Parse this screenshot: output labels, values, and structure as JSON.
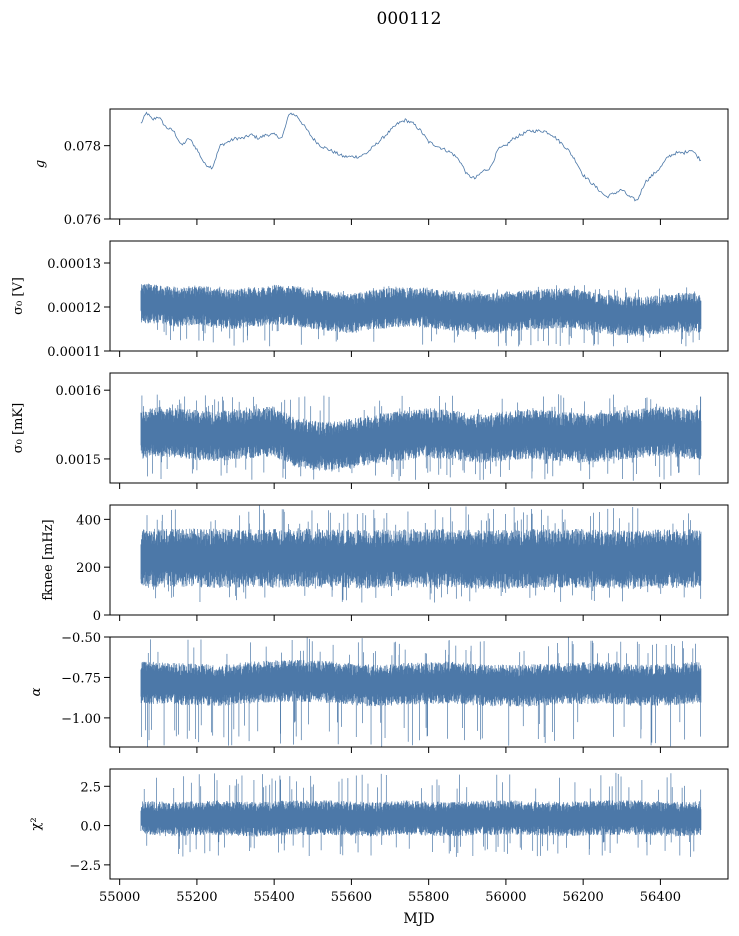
{
  "figure": {
    "title": "000112",
    "xlabel": "MJD"
  },
  "colors": {
    "series": "#4c78a8",
    "axes": "#000000",
    "background": "#ffffff"
  },
  "chart_data": [
    {
      "type": "line",
      "ylabel": "g",
      "xlim": [
        54975,
        56575
      ],
      "ylim": [
        0.076,
        0.079
      ],
      "yticks": [
        0.076,
        0.078
      ],
      "ytick_labels": [
        "0.076",
        "0.078"
      ],
      "show_xticklabels": false,
      "grid": false,
      "x": [
        55055,
        55070,
        55085,
        55100,
        55120,
        55140,
        55160,
        55180,
        55200,
        55220,
        55240,
        55260,
        55280,
        55300,
        55320,
        55340,
        55360,
        55380,
        55400,
        55420,
        55440,
        55460,
        55480,
        55500,
        55520,
        55540,
        55560,
        55580,
        55600,
        55620,
        55640,
        55660,
        55680,
        55700,
        55720,
        55740,
        55760,
        55780,
        55800,
        55820,
        55840,
        55860,
        55880,
        55900,
        55920,
        55940,
        55960,
        55980,
        56000,
        56020,
        56040,
        56060,
        56080,
        56100,
        56120,
        56140,
        56160,
        56180,
        56200,
        56220,
        56240,
        56260,
        56280,
        56300,
        56320,
        56340,
        56360,
        56380,
        56400,
        56420,
        56440,
        56460,
        56480,
        56505
      ],
      "y": [
        0.0786,
        0.0789,
        0.0787,
        0.0788,
        0.0785,
        0.0784,
        0.078,
        0.0782,
        0.0779,
        0.0775,
        0.0774,
        0.078,
        0.0781,
        0.0782,
        0.0782,
        0.0783,
        0.0782,
        0.0783,
        0.0783,
        0.0782,
        0.0789,
        0.0788,
        0.0785,
        0.0782,
        0.078,
        0.0779,
        0.0778,
        0.0777,
        0.0777,
        0.0777,
        0.0778,
        0.078,
        0.0782,
        0.0784,
        0.0786,
        0.0787,
        0.0786,
        0.0784,
        0.0781,
        0.078,
        0.0779,
        0.0778,
        0.0776,
        0.0772,
        0.0771,
        0.0773,
        0.0774,
        0.0779,
        0.078,
        0.0782,
        0.0783,
        0.0784,
        0.0784,
        0.0784,
        0.0783,
        0.0781,
        0.0779,
        0.0776,
        0.0772,
        0.077,
        0.0768,
        0.0766,
        0.0767,
        0.0768,
        0.0766,
        0.0765,
        0.077,
        0.0772,
        0.0774,
        0.0777,
        0.0778,
        0.0778,
        0.0779,
        0.0776
      ]
    },
    {
      "type": "line",
      "ylabel": "σ₀ [V]",
      "xlim": [
        54975,
        56575
      ],
      "ylim": [
        0.00011,
        0.000135
      ],
      "yticks": [
        0.00011,
        0.00012,
        0.00013
      ],
      "ytick_labels": [
        "0.00011",
        "0.00012",
        "0.00013"
      ],
      "show_xticklabels": false,
      "grid": false,
      "x": [
        55055,
        55100,
        55150,
        55200,
        55250,
        55300,
        55350,
        55400,
        55450,
        55500,
        55550,
        55600,
        55650,
        55700,
        55750,
        55800,
        55850,
        55900,
        55950,
        56000,
        56050,
        56100,
        56150,
        56200,
        56250,
        56300,
        56350,
        56400,
        56450,
        56505
      ],
      "y": [
        0.000121,
        0.0001205,
        0.00012,
        0.0001205,
        0.0001198,
        0.0001195,
        0.00012,
        0.0001205,
        0.0001203,
        0.0001195,
        0.000119,
        0.0001185,
        0.0001193,
        0.0001198,
        0.00012,
        0.0001198,
        0.0001192,
        0.0001188,
        0.0001185,
        0.000119,
        0.0001193,
        0.0001195,
        0.0001198,
        0.0001193,
        0.0001185,
        0.000118,
        0.0001178,
        0.0001183,
        0.0001188,
        0.0001185
      ],
      "spread": 3.5e-06,
      "extremes": [
        0.000111,
        0.000125
      ]
    },
    {
      "type": "line",
      "ylabel": "σ₀ [mK]",
      "xlim": [
        54975,
        56575
      ],
      "ylim": [
        0.001465,
        0.001625
      ],
      "yticks": [
        0.0015,
        0.0016
      ],
      "ytick_labels": [
        "0.0015",
        "0.0016"
      ],
      "show_xticklabels": false,
      "grid": false,
      "x": [
        55055,
        55100,
        55150,
        55200,
        55250,
        55300,
        55350,
        55400,
        55450,
        55500,
        55550,
        55600,
        55650,
        55700,
        55750,
        55800,
        55850,
        55900,
        55950,
        56000,
        56050,
        56100,
        56150,
        56200,
        56250,
        56300,
        56350,
        56400,
        56450,
        56505
      ],
      "y": [
        0.001535,
        0.00154,
        0.001538,
        0.001535,
        0.001533,
        0.001535,
        0.001538,
        0.00154,
        0.001525,
        0.00152,
        0.001518,
        0.001522,
        0.001528,
        0.001532,
        0.001535,
        0.001538,
        0.001535,
        0.001532,
        0.00153,
        0.001533,
        0.001536,
        0.001535,
        0.001532,
        0.00153,
        0.001532,
        0.001535,
        0.001538,
        0.00154,
        0.001538,
        0.001535
      ],
      "spread": 2.8e-05,
      "extremes": [
        0.001468,
        0.001595
      ]
    },
    {
      "type": "line",
      "ylabel": "fknee [mHz]",
      "xlim": [
        54975,
        56575
      ],
      "ylim": [
        0,
        460
      ],
      "yticks": [
        0,
        200,
        400
      ],
      "ytick_labels": [
        "0",
        "200",
        "400"
      ],
      "show_xticklabels": false,
      "grid": false,
      "x": [
        55055,
        55150,
        55250,
        55350,
        55450,
        55550,
        55650,
        55750,
        55850,
        55950,
        56050,
        56150,
        56250,
        56350,
        56450,
        56505
      ],
      "y": [
        235,
        240,
        238,
        235,
        240,
        237,
        233,
        238,
        236,
        232,
        235,
        238,
        234,
        232,
        236,
        235
      ],
      "spread": 95,
      "extremes": [
        50,
        460
      ]
    },
    {
      "type": "line",
      "ylabel": "α",
      "xlim": [
        54975,
        56575
      ],
      "ylim": [
        -1.18,
        -0.5
      ],
      "yticks": [
        -1.0,
        -0.75,
        -0.5
      ],
      "ytick_labels": [
        "−1.00",
        "−0.75",
        "−0.50"
      ],
      "show_xticklabels": false,
      "grid": false,
      "x": [
        55055,
        55150,
        55250,
        55350,
        55450,
        55550,
        55650,
        55750,
        55850,
        55950,
        56050,
        56150,
        56250,
        56350,
        56450,
        56505
      ],
      "y": [
        -0.78,
        -0.79,
        -0.8,
        -0.78,
        -0.77,
        -0.78,
        -0.8,
        -0.79,
        -0.78,
        -0.8,
        -0.8,
        -0.79,
        -0.78,
        -0.8,
        -0.79,
        -0.78
      ],
      "spread": 0.1,
      "extremes": [
        -1.18,
        -0.5
      ]
    },
    {
      "type": "line",
      "ylabel": "χ²",
      "xlim": [
        54975,
        56575
      ],
      "ylim": [
        -3.4,
        3.6
      ],
      "yticks": [
        -2.5,
        0.0,
        2.5
      ],
      "ytick_labels": [
        "−2.5",
        "0.0",
        "2.5"
      ],
      "xticks": [
        55000,
        55200,
        55400,
        55600,
        55800,
        56000,
        56200,
        56400
      ],
      "xtick_labels": [
        "55000",
        "55200",
        "55400",
        "55600",
        "55800",
        "56000",
        "56200",
        "56400"
      ],
      "show_xticklabels": true,
      "grid": false,
      "x": [
        55055,
        55150,
        55250,
        55350,
        55450,
        55550,
        55650,
        55750,
        55850,
        55950,
        56050,
        56150,
        56250,
        56350,
        56450,
        56505
      ],
      "y": [
        0.5,
        0.4,
        0.5,
        0.4,
        0.5,
        0.5,
        0.4,
        0.5,
        0.4,
        0.5,
        0.5,
        0.4,
        0.5,
        0.5,
        0.4,
        0.5
      ],
      "spread": 0.85,
      "extremes": [
        -2.0,
        3.4
      ]
    }
  ]
}
